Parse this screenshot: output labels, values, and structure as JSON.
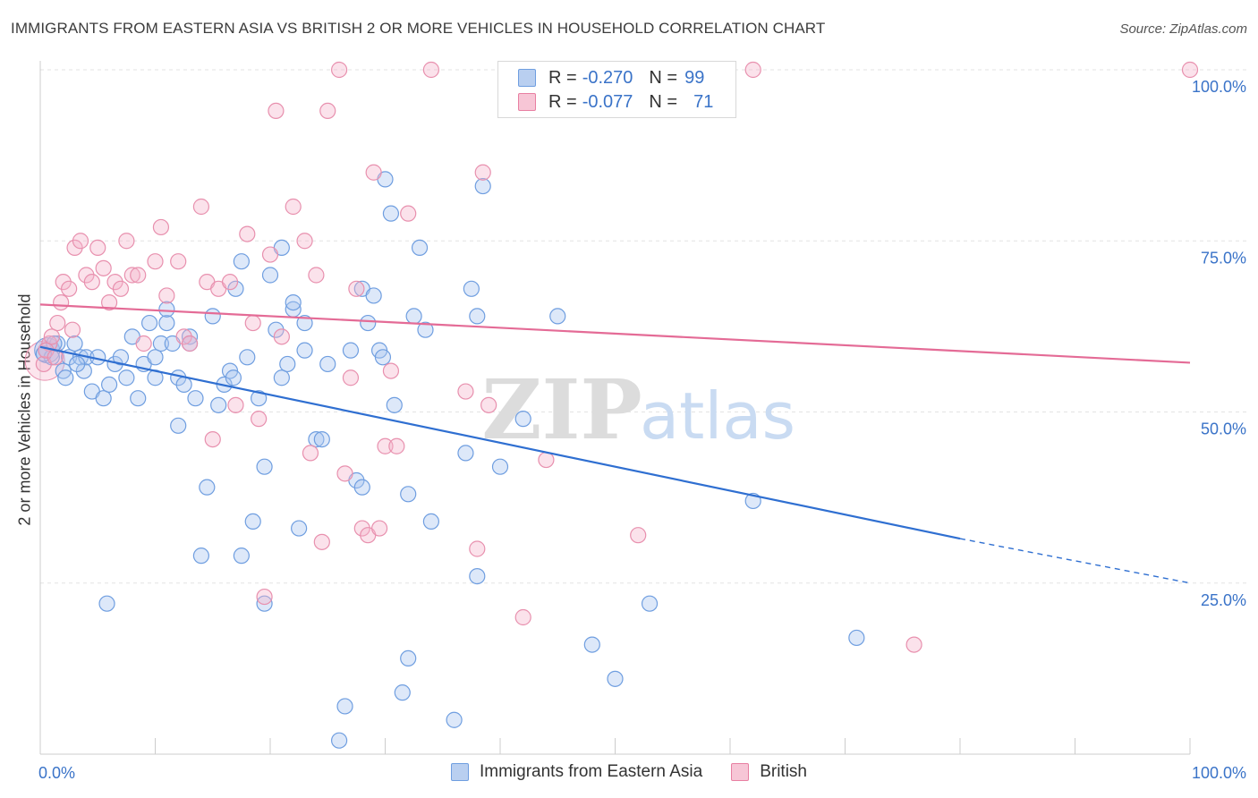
{
  "title": "IMMIGRANTS FROM EASTERN ASIA VS BRITISH 2 OR MORE VEHICLES IN HOUSEHOLD CORRELATION CHART",
  "source": "Source: ZipAtlas.com",
  "watermark": {
    "zip": "ZIP",
    "atlas": "atlas"
  },
  "legend": {
    "r_label": "R =",
    "n_label": "N =",
    "series": [
      {
        "name": "Immigrants from Eastern Asia",
        "r": "-0.270",
        "n": "99",
        "color": "#6f9ee0",
        "fill": "#b9cff0"
      },
      {
        "name": "British",
        "r": "-0.077",
        "n": "71",
        "color": "#e87fa2",
        "fill": "#f7c6d6"
      }
    ]
  },
  "chart_data": {
    "type": "scatter",
    "title": "IMMIGRANTS FROM EASTERN ASIA VS BRITISH 2 OR MORE VEHICLES IN HOUSEHOLD CORRELATION CHART",
    "xlabel": "",
    "ylabel": "2 or more Vehicles in Household",
    "xlim": [
      0,
      100
    ],
    "ylim": [
      0,
      100
    ],
    "x_tick_labels": [
      "0.0%",
      "100.0%"
    ],
    "y_ticks": [
      25,
      50,
      75,
      100
    ],
    "y_tick_labels": [
      "25.0%",
      "50.0%",
      "75.0%",
      "100.0%"
    ],
    "series": [
      {
        "name": "Immigrants from Eastern Asia",
        "color": "#5b8fd9",
        "trend": {
          "x0": 0,
          "y0": 59.5,
          "x1": 80,
          "y1": 31.5,
          "dash_to_x": 100,
          "dash_to_y": 25.0
        },
        "points": [
          [
            0.5,
            59
          ],
          [
            1,
            58
          ],
          [
            1.5,
            60
          ],
          [
            2,
            56
          ],
          [
            2.5,
            58
          ],
          [
            3,
            60
          ],
          [
            3.5,
            58
          ],
          [
            3.8,
            56
          ],
          [
            4,
            58
          ],
          [
            4.5,
            53
          ],
          [
            5,
            58
          ],
          [
            5.5,
            52
          ],
          [
            5.8,
            22
          ],
          [
            6,
            54
          ],
          [
            6.5,
            57
          ],
          [
            7,
            58
          ],
          [
            7.5,
            55
          ],
          [
            8,
            61
          ],
          [
            8.5,
            52
          ],
          [
            9,
            57
          ],
          [
            9.5,
            63
          ],
          [
            10,
            58
          ],
          [
            10,
            55
          ],
          [
            10.5,
            60
          ],
          [
            11,
            63
          ],
          [
            11,
            65
          ],
          [
            11.5,
            60
          ],
          [
            12,
            55
          ],
          [
            12,
            48
          ],
          [
            12.5,
            54
          ],
          [
            13,
            61
          ],
          [
            13,
            60
          ],
          [
            13.5,
            52
          ],
          [
            14,
            29
          ],
          [
            14.5,
            39
          ],
          [
            15,
            64
          ],
          [
            15.5,
            51
          ],
          [
            16,
            54
          ],
          [
            16.5,
            56
          ],
          [
            16.8,
            55
          ],
          [
            17,
            68
          ],
          [
            17.5,
            29
          ],
          [
            17.5,
            72
          ],
          [
            18,
            58
          ],
          [
            18.5,
            34
          ],
          [
            19,
            52
          ],
          [
            19.5,
            22
          ],
          [
            19.5,
            42
          ],
          [
            20,
            70
          ],
          [
            20.5,
            62
          ],
          [
            21,
            74
          ],
          [
            21,
            55
          ],
          [
            21.5,
            57
          ],
          [
            22,
            65
          ],
          [
            22,
            66
          ],
          [
            22.5,
            33
          ],
          [
            23,
            63
          ],
          [
            23,
            59
          ],
          [
            24,
            46
          ],
          [
            24.5,
            46
          ],
          [
            25,
            57
          ],
          [
            26,
            2
          ],
          [
            26.5,
            7
          ],
          [
            27,
            59
          ],
          [
            27.5,
            40
          ],
          [
            28,
            39
          ],
          [
            28,
            68
          ],
          [
            28.5,
            63
          ],
          [
            29,
            67
          ],
          [
            29.5,
            59
          ],
          [
            29.8,
            58
          ],
          [
            30,
            84
          ],
          [
            30.5,
            79
          ],
          [
            30.8,
            51
          ],
          [
            31.5,
            9
          ],
          [
            32,
            14
          ],
          [
            32,
            38
          ],
          [
            32.5,
            64
          ],
          [
            33,
            74
          ],
          [
            33.5,
            62
          ],
          [
            34,
            34
          ],
          [
            36,
            5
          ],
          [
            37,
            44
          ],
          [
            37.5,
            68
          ],
          [
            38,
            26
          ],
          [
            38,
            64
          ],
          [
            38.5,
            83
          ],
          [
            40,
            42
          ],
          [
            42,
            49
          ],
          [
            45,
            64
          ],
          [
            48,
            16
          ],
          [
            50,
            11
          ],
          [
            53,
            22
          ],
          [
            62,
            37
          ],
          [
            71,
            17
          ],
          [
            0.3,
            58.5
          ],
          [
            1.2,
            60
          ],
          [
            2.2,
            55
          ],
          [
            3.2,
            57
          ]
        ]
      },
      {
        "name": "British",
        "color": "#e87fa2",
        "trend": {
          "x0": 0,
          "y0": 65.7,
          "x1": 100,
          "y1": 57.2
        },
        "points": [
          [
            0.3,
            57
          ],
          [
            0.8,
            60
          ],
          [
            1,
            61
          ],
          [
            1.5,
            63
          ],
          [
            1.8,
            66
          ],
          [
            2,
            69
          ],
          [
            2.5,
            68
          ],
          [
            3,
            74
          ],
          [
            3.5,
            75
          ],
          [
            4,
            70
          ],
          [
            4.5,
            69
          ],
          [
            5,
            74
          ],
          [
            5.5,
            71
          ],
          [
            6,
            66
          ],
          [
            6.5,
            69
          ],
          [
            7,
            68
          ],
          [
            7.5,
            75
          ],
          [
            8,
            70
          ],
          [
            8.5,
            70
          ],
          [
            9,
            60
          ],
          [
            10,
            72
          ],
          [
            10.5,
            77
          ],
          [
            11,
            67
          ],
          [
            12,
            72
          ],
          [
            12.5,
            61
          ],
          [
            13,
            60
          ],
          [
            14,
            80
          ],
          [
            14.5,
            69
          ],
          [
            15,
            46
          ],
          [
            15.5,
            68
          ],
          [
            16.5,
            69
          ],
          [
            17,
            51
          ],
          [
            18,
            76
          ],
          [
            18.5,
            63
          ],
          [
            19,
            49
          ],
          [
            19.5,
            23
          ],
          [
            20,
            73
          ],
          [
            20.5,
            94
          ],
          [
            21,
            61
          ],
          [
            22,
            80
          ],
          [
            23,
            75
          ],
          [
            23.5,
            44
          ],
          [
            24,
            70
          ],
          [
            24.5,
            31
          ],
          [
            25,
            94
          ],
          [
            26,
            100
          ],
          [
            26.5,
            41
          ],
          [
            27,
            55
          ],
          [
            27.5,
            68
          ],
          [
            28,
            33
          ],
          [
            28.5,
            32
          ],
          [
            29,
            85
          ],
          [
            29.5,
            33
          ],
          [
            30,
            45
          ],
          [
            30.5,
            56
          ],
          [
            31,
            45
          ],
          [
            32,
            79
          ],
          [
            34,
            100
          ],
          [
            37,
            53
          ],
          [
            38,
            30
          ],
          [
            38.5,
            85
          ],
          [
            39,
            51
          ],
          [
            42,
            20
          ],
          [
            44,
            43
          ],
          [
            52,
            32
          ],
          [
            62,
            100
          ],
          [
            76,
            16
          ],
          [
            100,
            100
          ],
          [
            0.5,
            59
          ],
          [
            1.3,
            58
          ],
          [
            2.8,
            62
          ]
        ]
      }
    ]
  }
}
